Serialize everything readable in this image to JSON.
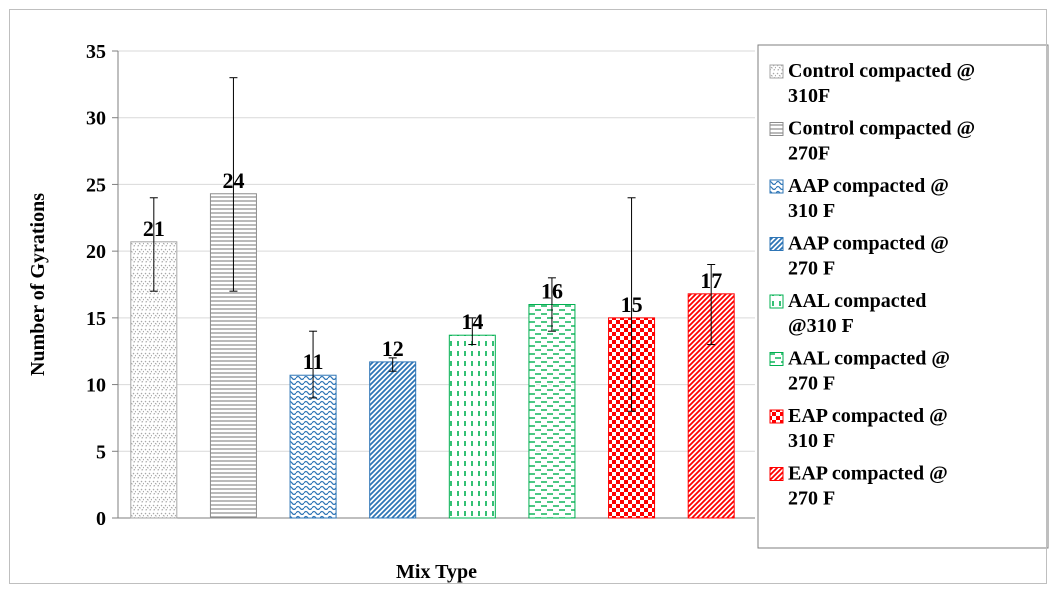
{
  "chart_data": {
    "type": "bar",
    "xlabel": "Mix Type",
    "ylabel": "Number of Gyrations",
    "ylim": [
      0,
      35
    ],
    "yticks": [
      "0",
      "5",
      "10",
      "15",
      "20",
      "25",
      "30",
      "35"
    ],
    "grid": "horizontal",
    "legend_position": "right",
    "series": [
      {
        "name": "Control compacted @ 310F",
        "value": 20.7,
        "data_label": "21",
        "err_low": 17,
        "err_high": 24,
        "color": "#a6a6a6",
        "pattern": "chevron"
      },
      {
        "name": "Control compacted @ 270F",
        "value": 24.3,
        "data_label": "24",
        "err_low": 17,
        "err_high": 33,
        "color": "#8c8c8c",
        "pattern": "hlines"
      },
      {
        "name": "AAP compacted @ 310 F",
        "value": 10.7,
        "data_label": "11",
        "err_low": 9,
        "err_high": 14,
        "color": "#2e75b6",
        "pattern": "waves"
      },
      {
        "name": "AAP compacted @ 270 F",
        "value": 11.7,
        "data_label": "12",
        "err_low": 11,
        "err_high": 12,
        "color": "#2e75b6",
        "pattern": "diagonal"
      },
      {
        "name": "AAL compacted @310 F",
        "value": 13.7,
        "data_label": "14",
        "err_low": 13,
        "err_high": 15,
        "color": "#00b050",
        "pattern": "vdash"
      },
      {
        "name": "AAL compacted @ 270 F",
        "value": 16,
        "data_label": "16",
        "err_low": 14,
        "err_high": 18,
        "color": "#00b050",
        "pattern": "hdash"
      },
      {
        "name": "EAP compacted @ 310 F",
        "value": 15,
        "data_label": "15",
        "err_low": 8,
        "err_high": 24,
        "color": "#ff0000",
        "pattern": "checker"
      },
      {
        "name": "EAP compacted @ 270 F",
        "value": 16.8,
        "data_label": "17",
        "err_low": 13,
        "err_high": 19,
        "color": "#ff0000",
        "pattern": "diagonal"
      }
    ],
    "legend_lines": [
      [
        "Control compacted @",
        "310F"
      ],
      [
        "Control compacted @",
        "270F"
      ],
      [
        "AAP compacted @",
        "310 F"
      ],
      [
        "AAP compacted @",
        "270 F"
      ],
      [
        "AAL compacted",
        "@310 F"
      ],
      [
        "AAL compacted @",
        "270 F"
      ],
      [
        "EAP compacted @",
        "310 F"
      ],
      [
        "EAP compacted @",
        "270 F"
      ]
    ]
  }
}
